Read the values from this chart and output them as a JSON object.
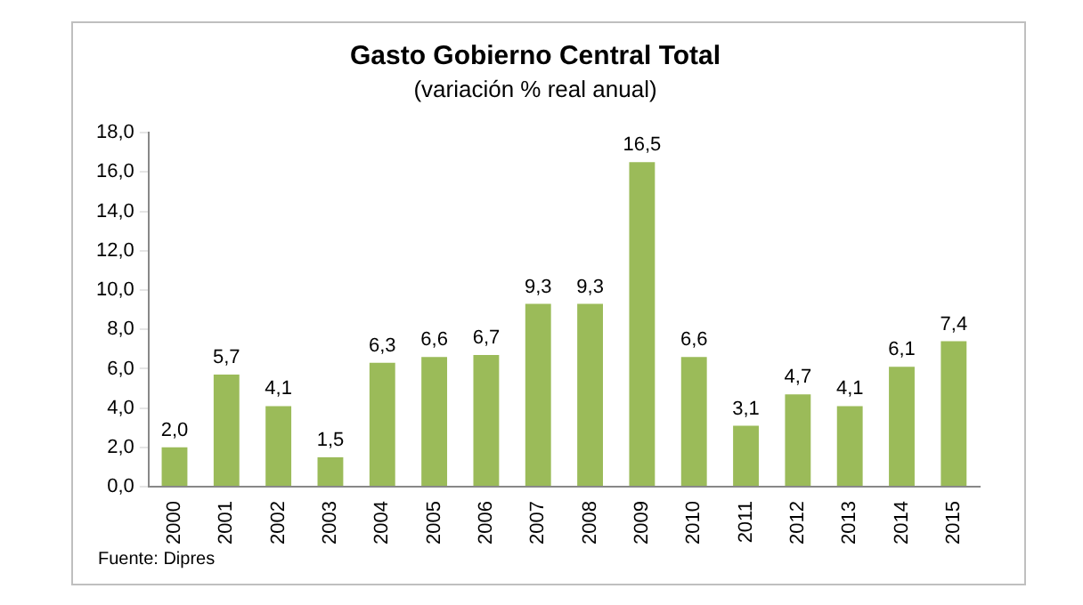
{
  "chart_data": {
    "type": "bar",
    "title": "Gasto Gobierno Central Total",
    "subtitle": "(variación % real anual)",
    "categories": [
      "2000",
      "2001",
      "2002",
      "2003",
      "2004",
      "2005",
      "2006",
      "2007",
      "2008",
      "2009",
      "2010",
      "2011",
      "2012",
      "2013",
      "2014",
      "2015"
    ],
    "values": [
      2.0,
      5.7,
      4.1,
      1.5,
      6.3,
      6.6,
      6.7,
      9.3,
      9.3,
      16.5,
      6.6,
      3.1,
      4.7,
      4.1,
      6.1,
      7.4
    ],
    "value_labels": [
      "2,0",
      "5,7",
      "4,1",
      "1,5",
      "6,3",
      "6,6",
      "6,7",
      "9,3",
      "9,3",
      "16,5",
      "6,6",
      "3,1",
      "4,7",
      "4,1",
      "6,1",
      "7,4"
    ],
    "color": "#9bbb59",
    "ylim": [
      0,
      18
    ],
    "yticks": [
      {
        "value": 0,
        "label": "0,0"
      },
      {
        "value": 2,
        "label": "2,0"
      },
      {
        "value": 4,
        "label": "4,0"
      },
      {
        "value": 6,
        "label": "6,0"
      },
      {
        "value": 8,
        "label": "8,0"
      },
      {
        "value": 10,
        "label": "10,0"
      },
      {
        "value": 12,
        "label": "12,0"
      },
      {
        "value": 14,
        "label": "14,0"
      },
      {
        "value": 16,
        "label": "16,0"
      },
      {
        "value": 18,
        "label": "18,0"
      }
    ],
    "grid": false,
    "legend": false,
    "annotations": [
      "Fuente: Dipres"
    ]
  }
}
